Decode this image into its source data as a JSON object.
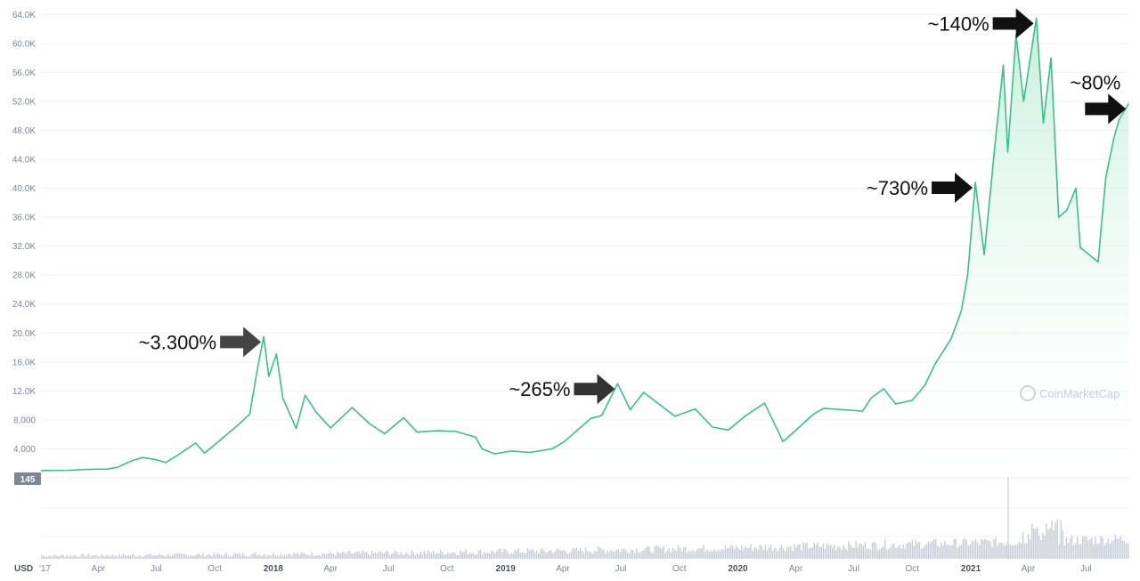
{
  "chart_data": {
    "type": "area",
    "currency": "USD",
    "current_price_badge": "145",
    "watermark": "CoinMarketCap",
    "y_ticks": [
      "4,000",
      "8,000",
      "12.0K",
      "16.0K",
      "20.0K",
      "24.0K",
      "28.0K",
      "32.0K",
      "36.0K",
      "40.0K",
      "44.0K",
      "48.0K",
      "52.0K",
      "56.0K",
      "60.0K",
      "64.0K"
    ],
    "y_tick_values": [
      4000,
      8000,
      12000,
      16000,
      20000,
      24000,
      28000,
      32000,
      36000,
      40000,
      44000,
      48000,
      52000,
      56000,
      60000,
      64000
    ],
    "ylim": [
      0,
      66000
    ],
    "x_range": [
      "2017-01-01",
      "2021-09-07"
    ],
    "x_ticks": [
      {
        "label": "'17",
        "date": "2017-01-01",
        "bold": false
      },
      {
        "label": "Apr",
        "date": "2017-04-01",
        "bold": false
      },
      {
        "label": "Jul",
        "date": "2017-07-01",
        "bold": false
      },
      {
        "label": "Oct",
        "date": "2017-10-01",
        "bold": false
      },
      {
        "label": "2018",
        "date": "2018-01-01",
        "bold": true
      },
      {
        "label": "Apr",
        "date": "2018-04-01",
        "bold": false
      },
      {
        "label": "Jul",
        "date": "2018-07-01",
        "bold": false
      },
      {
        "label": "Oct",
        "date": "2018-10-01",
        "bold": false
      },
      {
        "label": "2019",
        "date": "2019-01-01",
        "bold": true
      },
      {
        "label": "Apr",
        "date": "2019-04-01",
        "bold": false
      },
      {
        "label": "Jul",
        "date": "2019-07-01",
        "bold": false
      },
      {
        "label": "Oct",
        "date": "2019-10-01",
        "bold": false
      },
      {
        "label": "2020",
        "date": "2020-01-01",
        "bold": true
      },
      {
        "label": "Apr",
        "date": "2020-04-01",
        "bold": false
      },
      {
        "label": "Jul",
        "date": "2020-07-01",
        "bold": false
      },
      {
        "label": "Oct",
        "date": "2020-10-01",
        "bold": false
      },
      {
        "label": "2021",
        "date": "2021-01-01",
        "bold": true
      },
      {
        "label": "Apr",
        "date": "2021-04-01",
        "bold": false
      },
      {
        "label": "Jul",
        "date": "2021-07-01",
        "bold": false
      }
    ],
    "series": [
      {
        "points": [
          [
            "2017-01-01",
            1000
          ],
          [
            "2017-02-15",
            1050
          ],
          [
            "2017-03-15",
            1150
          ],
          [
            "2017-04-15",
            1200
          ],
          [
            "2017-05-01",
            1450
          ],
          [
            "2017-05-25",
            2400
          ],
          [
            "2017-06-10",
            2800
          ],
          [
            "2017-07-01",
            2500
          ],
          [
            "2017-07-16",
            2100
          ],
          [
            "2017-08-05",
            3200
          ],
          [
            "2017-09-01",
            4800
          ],
          [
            "2017-09-15",
            3400
          ],
          [
            "2017-10-15",
            5600
          ],
          [
            "2017-11-08",
            7400
          ],
          [
            "2017-11-25",
            8800
          ],
          [
            "2017-12-08",
            15500
          ],
          [
            "2017-12-17",
            19500
          ],
          [
            "2017-12-25",
            14000
          ],
          [
            "2018-01-06",
            17100
          ],
          [
            "2018-01-16",
            11000
          ],
          [
            "2018-02-06",
            6800
          ],
          [
            "2018-02-20",
            11400
          ],
          [
            "2018-03-10",
            9000
          ],
          [
            "2018-04-01",
            6900
          ],
          [
            "2018-05-05",
            9700
          ],
          [
            "2018-06-01",
            7500
          ],
          [
            "2018-06-25",
            6100
          ],
          [
            "2018-07-25",
            8300
          ],
          [
            "2018-08-15",
            6300
          ],
          [
            "2018-09-15",
            6500
          ],
          [
            "2018-10-15",
            6400
          ],
          [
            "2018-11-15",
            5600
          ],
          [
            "2018-11-25",
            4000
          ],
          [
            "2018-12-15",
            3300
          ],
          [
            "2019-01-10",
            3700
          ],
          [
            "2019-02-08",
            3500
          ],
          [
            "2019-03-15",
            4000
          ],
          [
            "2019-04-02",
            4900
          ],
          [
            "2019-05-15",
            8200
          ],
          [
            "2019-06-01",
            8600
          ],
          [
            "2019-06-26",
            13000
          ],
          [
            "2019-07-16",
            9400
          ],
          [
            "2019-08-06",
            11800
          ],
          [
            "2019-09-24",
            8500
          ],
          [
            "2019-10-26",
            9500
          ],
          [
            "2019-11-22",
            7000
          ],
          [
            "2019-12-17",
            6600
          ],
          [
            "2020-01-15",
            8700
          ],
          [
            "2020-02-12",
            10300
          ],
          [
            "2020-03-12",
            5000
          ],
          [
            "2020-03-16",
            5300
          ],
          [
            "2020-04-29",
            8800
          ],
          [
            "2020-05-15",
            9600
          ],
          [
            "2020-06-15",
            9400
          ],
          [
            "2020-07-15",
            9200
          ],
          [
            "2020-07-28",
            11000
          ],
          [
            "2020-08-17",
            12300
          ],
          [
            "2020-09-05",
            10200
          ],
          [
            "2020-10-01",
            10700
          ],
          [
            "2020-10-21",
            12800
          ],
          [
            "2020-11-05",
            15600
          ],
          [
            "2020-12-01",
            19200
          ],
          [
            "2020-12-17",
            23000
          ],
          [
            "2020-12-27",
            28000
          ],
          [
            "2021-01-08",
            40800
          ],
          [
            "2021-01-22",
            30800
          ],
          [
            "2021-02-08",
            46000
          ],
          [
            "2021-02-21",
            57000
          ],
          [
            "2021-02-28",
            45000
          ],
          [
            "2021-03-13",
            61200
          ],
          [
            "2021-03-25",
            52000
          ],
          [
            "2021-04-14",
            63500
          ],
          [
            "2021-04-25",
            49000
          ],
          [
            "2021-05-07",
            58000
          ],
          [
            "2021-05-19",
            36000
          ],
          [
            "2021-06-01",
            37000
          ],
          [
            "2021-06-15",
            40000
          ],
          [
            "2021-06-22",
            31800
          ],
          [
            "2021-07-20",
            29800
          ],
          [
            "2021-08-01",
            41500
          ],
          [
            "2021-08-14",
            47000
          ],
          [
            "2021-08-22",
            49500
          ],
          [
            "2021-09-06",
            51700
          ]
        ]
      }
    ],
    "annotations": [
      {
        "text": "~3.300%",
        "date": "2017-12-17",
        "value": 19500,
        "arrow_color": "#444444"
      },
      {
        "text": "~265%",
        "date": "2019-06-26",
        "value": 13000,
        "arrow_color": "#333333"
      },
      {
        "text": "~730%",
        "date": "2021-01-08",
        "value": 40800,
        "arrow_color": "#111111"
      },
      {
        "text": "~140%",
        "date": "2021-04-14",
        "value": 63500,
        "arrow_color": "#111111"
      },
      {
        "text": "~80%",
        "date": "2021-09-06",
        "value": 51700,
        "arrow_color": "#111111"
      }
    ],
    "colors": {
      "line": "#3bbf86",
      "fill": "#d9f4e8",
      "grid": "#eef0f3",
      "volume": "#c6cbd4",
      "badge": "#7f8792"
    },
    "grid": true
  }
}
